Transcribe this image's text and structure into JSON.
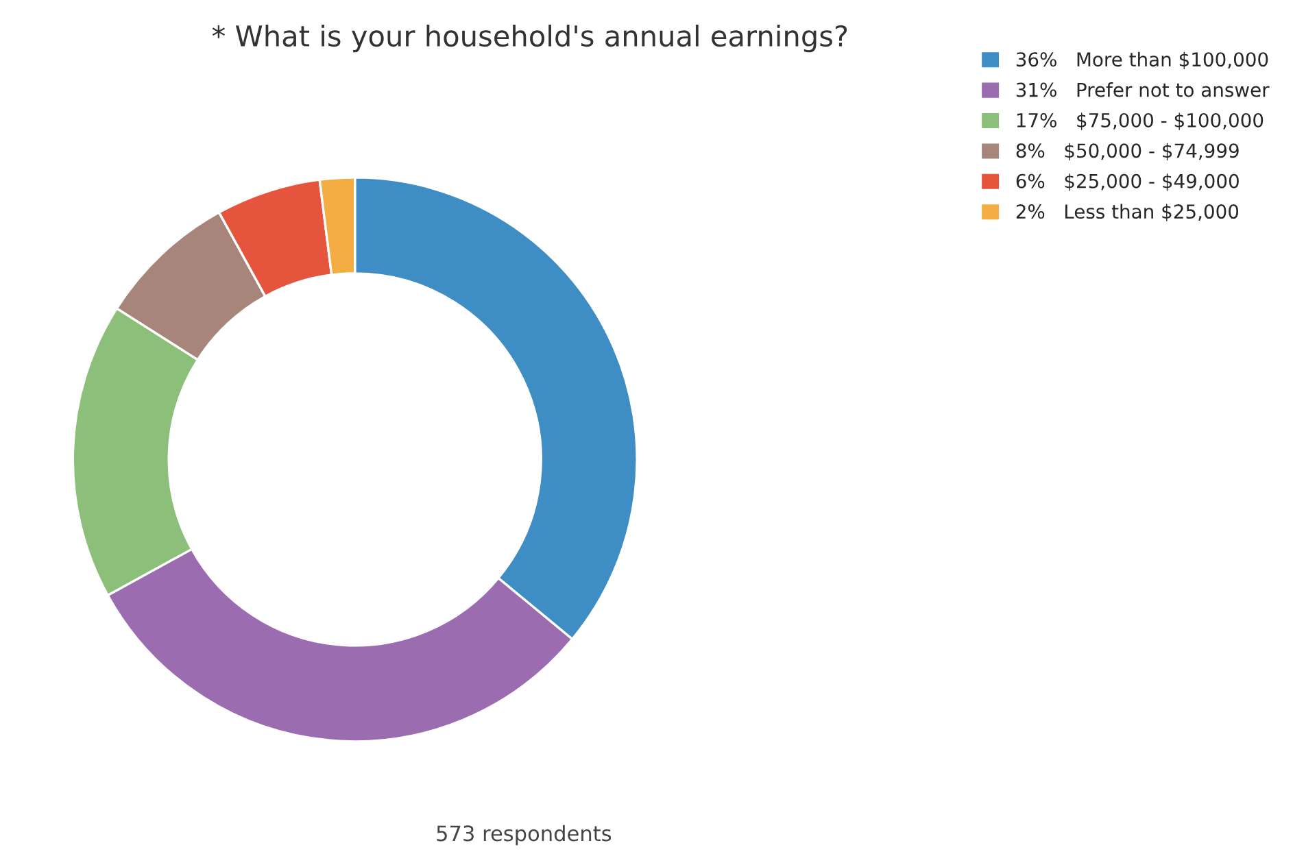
{
  "chart_data": {
    "type": "donut",
    "title": "* What is your household's annual earnings?",
    "categories": [
      "More than $100,000",
      "Prefer not to answer",
      "$75,000 - $100,000",
      "$50,000 - $74,999",
      "$25,000 - $49,000",
      "Less than $25,000"
    ],
    "values": [
      36,
      31,
      17,
      8,
      6,
      2
    ],
    "value_labels": [
      "36%",
      "31%",
      "17%",
      "8%",
      "6%",
      "2%"
    ],
    "colors": [
      "#3e8dc4",
      "#9b6db0",
      "#8cc07a",
      "#a7857a",
      "#e5553e",
      "#f4ad42"
    ],
    "legend": "top right",
    "annotations": [
      "573 respondents"
    ]
  }
}
